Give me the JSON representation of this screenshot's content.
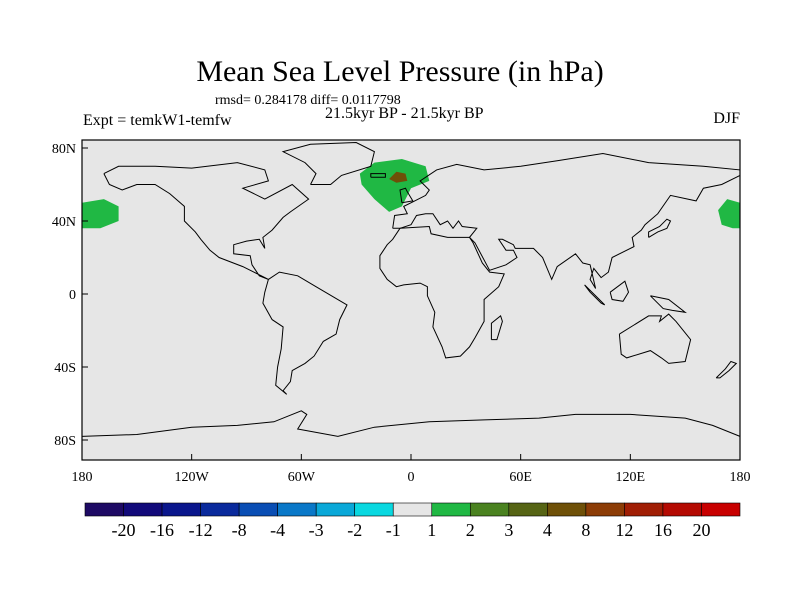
{
  "title": "Mean Sea Level Pressure (in hPa)",
  "stats": "rmsd= 0.284178 diff= 0.0117798",
  "period": "21.5kyr BP - 21.5kyr BP",
  "expt": "Expt = temkW1-temfw",
  "season": "DJF",
  "lat_ticks": [
    "80N",
    "40N",
    "0",
    "40S",
    "80S"
  ],
  "lon_ticks": [
    "180",
    "120W",
    "60W",
    "0",
    "60E",
    "120E",
    "180"
  ],
  "colorbar": {
    "labels": [
      "-20",
      "-16",
      "-12",
      "-8",
      "-4",
      "-3",
      "-2",
      "-1",
      "1",
      "2",
      "3",
      "4",
      "8",
      "12",
      "16",
      "20"
    ],
    "colors": [
      "#1e0a64",
      "#120a7a",
      "#0a168c",
      "#0a2a9c",
      "#0a4eb4",
      "#0a78c8",
      "#0aa8d8",
      "#0ad8e0",
      "#e6e6e6",
      "#20b844",
      "#4a8220",
      "#566414",
      "#6e5008",
      "#8c3c06",
      "#a01e04",
      "#b40a02",
      "#c80000"
    ]
  },
  "colors": {
    "background": "#e6e6e6",
    "positive_anomaly": "#20b844",
    "strong_anomaly": "#6e5008"
  }
}
